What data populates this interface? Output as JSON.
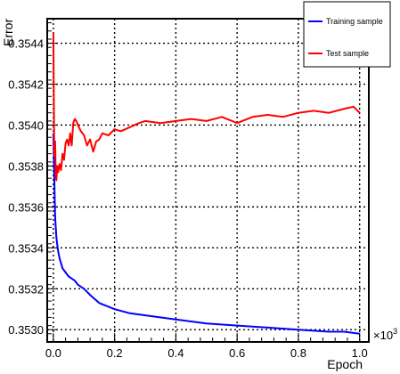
{
  "chart_data": {
    "type": "line",
    "title": "",
    "xlabel": "Epoch",
    "ylabel": "Error",
    "x_multiplier": "×10",
    "x_multiplier_exp": "3",
    "xlim": [
      -0.02,
      1.03
    ],
    "ylim": [
      0.35294,
      0.35452
    ],
    "x_ticks": [
      0.0,
      0.2,
      0.4,
      0.6,
      0.8,
      1.0
    ],
    "x_tick_labels": [
      "0.0",
      "0.2",
      "0.4",
      "0.6",
      "0.8",
      "1.0"
    ],
    "y_ticks": [
      0.353,
      0.3532,
      0.3534,
      0.3536,
      0.3538,
      0.354,
      0.3542,
      0.3544
    ],
    "y_tick_labels": [
      "0.3530",
      "0.3532",
      "0.3534",
      "0.3536",
      "0.3538",
      "0.3540",
      "0.3542",
      "0.3544"
    ],
    "grid": true,
    "legend_position": "top-right",
    "series": [
      {
        "name": "Training sample",
        "color": "#0000ff",
        "x": [
          0.0,
          0.003,
          0.006,
          0.01,
          0.015,
          0.02,
          0.03,
          0.04,
          0.05,
          0.06,
          0.07,
          0.08,
          0.1,
          0.12,
          0.15,
          0.2,
          0.25,
          0.3,
          0.4,
          0.5,
          0.6,
          0.7,
          0.8,
          0.9,
          0.95,
          1.0
        ],
        "y": [
          0.35396,
          0.35375,
          0.35355,
          0.35345,
          0.35339,
          0.35335,
          0.3533,
          0.35328,
          0.35326,
          0.35325,
          0.35324,
          0.35322,
          0.3532,
          0.35317,
          0.35313,
          0.3531,
          0.35308,
          0.35307,
          0.35305,
          0.35303,
          0.35302,
          0.35301,
          0.353,
          0.35299,
          0.35299,
          0.35298
        ]
      },
      {
        "name": "Test sample",
        "color": "#ff0000",
        "x": [
          0.0,
          0.003,
          0.006,
          0.008,
          0.01,
          0.013,
          0.016,
          0.02,
          0.025,
          0.03,
          0.035,
          0.04,
          0.045,
          0.05,
          0.055,
          0.06,
          0.065,
          0.07,
          0.075,
          0.08,
          0.09,
          0.1,
          0.11,
          0.12,
          0.13,
          0.14,
          0.15,
          0.16,
          0.18,
          0.2,
          0.22,
          0.25,
          0.28,
          0.3,
          0.35,
          0.4,
          0.45,
          0.5,
          0.55,
          0.6,
          0.65,
          0.7,
          0.75,
          0.8,
          0.85,
          0.9,
          0.95,
          0.98,
          1.0
        ],
        "y": [
          0.35445,
          0.35385,
          0.35392,
          0.35375,
          0.35373,
          0.3538,
          0.35377,
          0.35381,
          0.35378,
          0.35386,
          0.35383,
          0.35391,
          0.35393,
          0.3539,
          0.35396,
          0.3539,
          0.35401,
          0.35403,
          0.35402,
          0.354,
          0.35397,
          0.35395,
          0.3539,
          0.35393,
          0.35387,
          0.35392,
          0.35393,
          0.35396,
          0.35395,
          0.35398,
          0.35397,
          0.35399,
          0.35401,
          0.35402,
          0.35401,
          0.35402,
          0.35403,
          0.35402,
          0.35404,
          0.35401,
          0.35404,
          0.35405,
          0.35404,
          0.35406,
          0.35407,
          0.35406,
          0.35408,
          0.35409,
          0.35406
        ]
      }
    ]
  }
}
